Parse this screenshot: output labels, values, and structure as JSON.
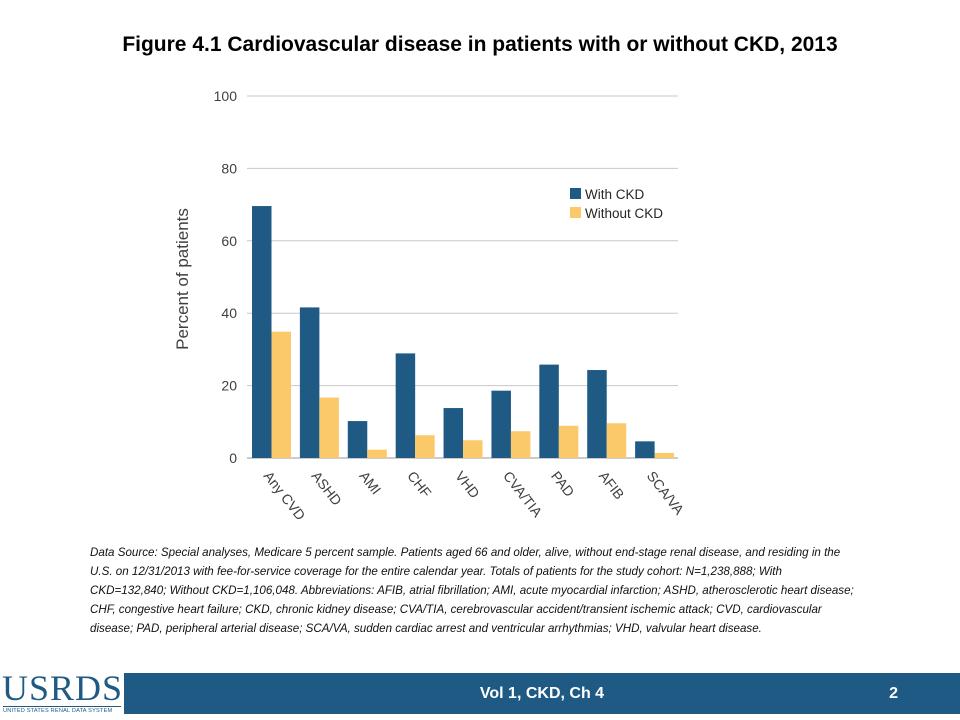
{
  "title": "Figure 4.1  Cardiovascular disease in patients with or without CKD, 2013",
  "note": "Data Source: Special analyses, Medicare 5 percent sample. Patients aged 66 and older, alive, without end-stage renal disease, and residing in the U.S. on 12/31/2013 with fee-for-service coverage for the entire calendar year. Totals of patients for the study cohort: N=1,238,888; With CKD=132,840; Without CKD=1,106,048. Abbreviations: AFIB, atrial fibrillation; AMI, acute myocardial infarction; ASHD, atherosclerotic heart disease; CHF, congestive heart failure; CKD, chronic kidney disease; CVA/TIA, cerebrovascular accident/transient ischemic attack; CVD, cardiovascular disease; PAD, peripheral arterial disease; SCA/VA, sudden cardiac arrest and ventricular arrhythmias; VHD, valvular heart disease.",
  "footer": {
    "text": "Vol 1, CKD, Ch 4",
    "page": "2"
  },
  "logo": {
    "word": "USRDS",
    "subtitle": "UNITED STATES RENAL DATA SYSTEM"
  },
  "colors": {
    "with_ckd": "#1f5a84",
    "without_ckd": "#fcc96a",
    "grid": "#c8c8c8",
    "footer": "#1f5a84"
  },
  "chart_data": {
    "type": "bar",
    "title": "",
    "xlabel": "",
    "ylabel": "Percent of patients",
    "ylim": [
      0,
      100
    ],
    "yticks": [
      0,
      20,
      40,
      60,
      80,
      100
    ],
    "grid": true,
    "legend_position": "top-right",
    "categories": [
      "Any CVD",
      "ASHD",
      "AMI",
      "CHF",
      "VHD",
      "CVA/TIA",
      "PAD",
      "AFIB",
      "SCA/VA"
    ],
    "series": [
      {
        "name": "With CKD",
        "values": [
          69.6,
          41.6,
          10.2,
          28.9,
          13.8,
          18.6,
          25.8,
          24.3,
          4.6
        ]
      },
      {
        "name": "Without CKD",
        "values": [
          34.9,
          16.7,
          2.3,
          6.3,
          4.9,
          7.4,
          8.9,
          9.6,
          1.4
        ]
      }
    ]
  }
}
